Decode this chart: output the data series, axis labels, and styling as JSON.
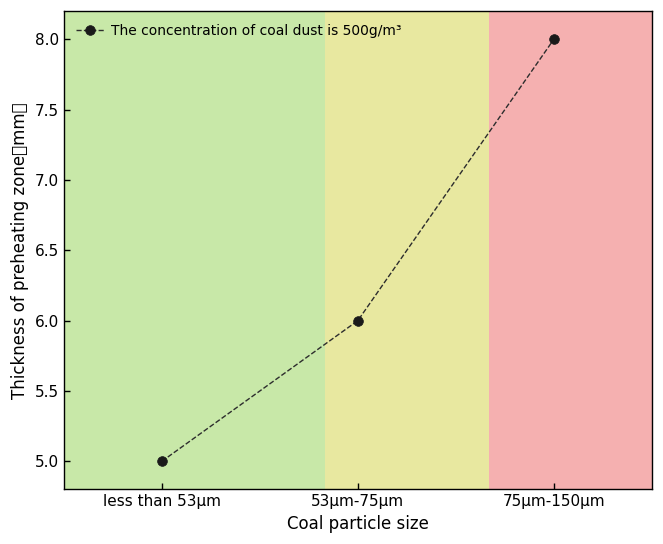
{
  "x_positions": [
    0,
    1,
    2
  ],
  "y_values": [
    5.0,
    6.0,
    8.0
  ],
  "x_tick_labels": [
    "less than 53μm",
    "53μm-75μm",
    "75μm-150μm"
  ],
  "xlabel": "Coal particle size",
  "ylabel": "Thickness of preheating zone（mm）",
  "ylim": [
    4.8,
    8.2
  ],
  "xlim": [
    -0.5,
    2.5
  ],
  "yticks": [
    5.0,
    5.5,
    6.0,
    6.5,
    7.0,
    7.5,
    8.0
  ],
  "legend_label": "The concentration of coal dust is 500g/m³",
  "bg_bands": [
    {
      "xmin": -0.5,
      "xmax": 0.833,
      "color": "#c8e8a8"
    },
    {
      "xmin": 0.833,
      "xmax": 1.667,
      "color": "#e8e8a0"
    },
    {
      "xmin": 1.667,
      "xmax": 2.5,
      "color": "#f5b0b0"
    }
  ],
  "line_color": "#2d2d2d",
  "marker_color": "#1a1a1a",
  "marker_size": 7,
  "line_style": "--",
  "line_width": 1.0,
  "figure_bg": "#ffffff",
  "axis_fontsize": 12,
  "tick_fontsize": 11,
  "legend_fontsize": 10
}
